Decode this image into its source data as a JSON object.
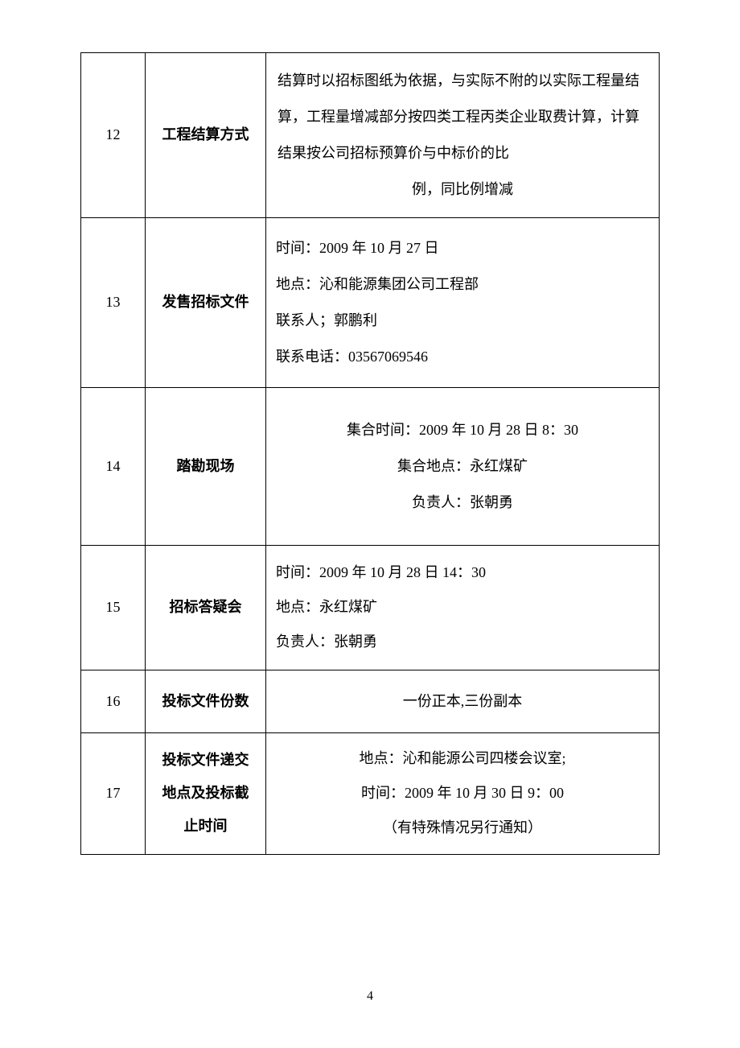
{
  "table": {
    "border_color": "#000000",
    "text_color": "#000000",
    "background_color": "#ffffff",
    "font_family": "SimSun",
    "font_size": 18,
    "columns": [
      {
        "width": 80,
        "align": "center"
      },
      {
        "width": 150,
        "align": "center",
        "weight": "bold"
      },
      {
        "width": "auto",
        "align": "mixed"
      }
    ],
    "rows": [
      {
        "num": "12",
        "title": "工程结算方式",
        "content": "结算时以招标图纸为依据，与实际不附的以实际工程量结算，工程量增减部分按四类工程丙类企业取费计算，计算结果按公司招标预算价与中标价的比例，同比例增减",
        "content_align": "justify",
        "last_line_center": true,
        "last_line": "例，同比例增减"
      },
      {
        "num": "13",
        "title": "发售招标文件",
        "lines": [
          "时间：2009 年 10 月 27 日",
          "地点：沁和能源集团公司工程部",
          "联系人；郭鹏利",
          "联系电话：03567069546"
        ],
        "content_align": "left"
      },
      {
        "num": "14",
        "title": "踏勘现场",
        "lines": [
          "集合时间：2009 年 10 月 28 日 8：30",
          "集合地点：永红煤矿",
          "负责人：张朝勇"
        ],
        "content_align": "center"
      },
      {
        "num": "15",
        "title": "招标答疑会",
        "lines": [
          "时间：2009 年 10 月 28 日 14：30",
          "地点：永红煤矿",
          "负责人：张朝勇"
        ],
        "content_align": "left"
      },
      {
        "num": "16",
        "title": "投标文件份数",
        "content": "一份正本,三份副本",
        "content_align": "center"
      },
      {
        "num": "17",
        "title_lines": [
          "投标文件递交",
          "地点及投标截",
          "止时间"
        ],
        "lines": [
          "地点：沁和能源公司四楼会议室;",
          "时间：2009 年 10 月 30 日  9：00",
          "（有特殊情况另行通知）"
        ],
        "content_align": "center"
      }
    ]
  },
  "page_number": "4"
}
